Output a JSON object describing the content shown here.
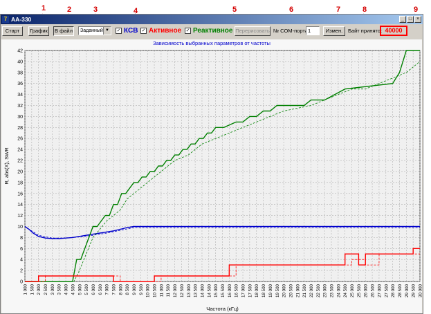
{
  "callouts": [
    "1",
    "2",
    "3",
    "4",
    "5",
    "6",
    "7",
    "8",
    "9"
  ],
  "window": {
    "title": "AA-330",
    "icon_glyph": "7",
    "controls": {
      "minimize": "_",
      "maximize": "□",
      "close": "×"
    }
  },
  "toolbar": {
    "start_label": "Старт",
    "graph_label": "График",
    "to_file_label": "В файл",
    "mode_select_value": "Заданный",
    "ksv_label": "КСВ",
    "active_label": "Активное",
    "reactive_label": "Реактивное",
    "redraw_label": "Перерисовать",
    "com_port_label": "№ COM-порта",
    "com_port_value": "1",
    "change_label": "Измен.",
    "bytes_label": "Байт принято:",
    "bytes_value": "40000",
    "checkboxes": {
      "ksv": true,
      "active": true,
      "reactive": true
    }
  },
  "colors": {
    "ksv": "#0000cc",
    "active": "#ff0000",
    "reactive": "#008000",
    "callout": "#d40000"
  },
  "chart_data": {
    "type": "line",
    "title": "Зависимость выбранных параметров от частоты",
    "xlabel": "Частота (кГц)",
    "ylabel": "R, abs(X), SWR",
    "xlim": [
      1000,
      30000
    ],
    "ylim": [
      0,
      42
    ],
    "yticks": [
      0,
      2,
      4,
      6,
      8,
      10,
      12,
      14,
      16,
      18,
      20,
      22,
      24,
      26,
      28,
      30,
      32,
      34,
      36,
      38,
      40,
      42
    ],
    "xticks": [
      "1 000",
      "1 500",
      "2 000",
      "2 500",
      "3 000",
      "3 500",
      "4 000",
      "4 500",
      "5 000",
      "5 500",
      "6 000",
      "6 500",
      "7 000",
      "7 500",
      "8 000",
      "8 500",
      "9 000",
      "9 500",
      "10 000",
      "10 500",
      "11 000",
      "11 500",
      "12 000",
      "12 500",
      "13 000",
      "13 500",
      "14 000",
      "14 500",
      "15 000",
      "15 500",
      "16 000",
      "16 500",
      "17 000",
      "17 500",
      "18 000",
      "18 500",
      "19 000",
      "19 500",
      "20 000",
      "20 500",
      "21 000",
      "21 500",
      "22 000",
      "22 500",
      "23 000",
      "23 500",
      "24 000",
      "24 500",
      "25 000",
      "25 500",
      "26 000",
      "26 500",
      "27 000",
      "27 500",
      "28 000",
      "28 500",
      "29 000",
      "29 500",
      "30 000"
    ],
    "grid": true,
    "series": [
      {
        "key": "ksv",
        "style": "solid",
        "x": [
          1000,
          1300,
          1600,
          2000,
          2500,
          3000,
          3500,
          4000,
          4500,
          5000,
          5500,
          6000,
          6500,
          7000,
          7500,
          8000,
          8500,
          9000,
          9500,
          30000
        ],
        "y": [
          10,
          9.5,
          8.8,
          8.2,
          7.9,
          7.8,
          7.8,
          7.9,
          8,
          8.2,
          8.4,
          8.6,
          8.8,
          9,
          9.2,
          9.5,
          9.8,
          10,
          10,
          10
        ]
      },
      {
        "key": "ksv",
        "style": "dashed",
        "x": [
          1000,
          2000,
          3000,
          4000,
          5000,
          6000,
          7000,
          8000,
          9000,
          30000
        ],
        "y": [
          10,
          8.4,
          7.9,
          7.9,
          8.1,
          8.4,
          8.8,
          9.3,
          9.8,
          9.8
        ]
      },
      {
        "key": "reactive",
        "style": "solid",
        "x": [
          1000,
          4500,
          4800,
          5100,
          5400,
          5700,
          6000,
          6300,
          6600,
          6900,
          7200,
          7500,
          7800,
          8100,
          8400,
          8700,
          9000,
          9300,
          9600,
          9900,
          10200,
          10500,
          10800,
          11100,
          11400,
          11700,
          12000,
          12300,
          12600,
          12900,
          13200,
          13500,
          13800,
          14100,
          14400,
          14700,
          15000,
          15300,
          15600,
          16500,
          17000,
          17500,
          18000,
          18500,
          19000,
          19500,
          21500,
          22000,
          23000,
          24500,
          28000,
          28500,
          29000,
          30000
        ],
        "y": [
          0,
          0,
          4,
          4,
          6,
          8,
          10,
          10,
          11,
          12,
          12,
          14,
          14,
          16,
          16,
          17,
          18,
          18,
          19,
          19,
          20,
          20,
          21,
          21,
          22,
          22,
          23,
          23,
          24,
          24,
          25,
          25,
          26,
          26,
          27,
          27,
          28,
          28,
          28,
          29,
          29,
          30,
          30,
          31,
          31,
          32,
          32,
          33,
          33,
          35,
          36,
          38,
          42,
          42
        ]
      },
      {
        "key": "reactive",
        "style": "dashed",
        "x": [
          1000,
          4600,
          5000,
          5500,
          6000,
          6500,
          7000,
          7500,
          8000,
          8500,
          9000,
          9500,
          10000,
          11000,
          12000,
          13000,
          14000,
          15000,
          16000,
          17000,
          18000,
          19000,
          20000,
          22000,
          23000,
          24000,
          25000,
          26000,
          27000,
          28000,
          29000,
          30000
        ],
        "y": [
          0,
          0,
          2,
          5,
          8,
          9.5,
          11,
          12,
          13,
          15,
          16,
          17,
          18,
          20,
          22,
          23,
          25,
          26,
          27,
          28,
          29,
          30,
          31,
          32,
          33,
          34,
          35,
          35,
          36,
          37,
          38,
          40
        ]
      },
      {
        "key": "active",
        "style": "solid",
        "x": [
          1000,
          2000,
          2001,
          7500,
          7501,
          10500,
          10501,
          16000,
          16001,
          24500,
          24501,
          25500,
          25501,
          26000,
          26001,
          26500,
          26501,
          29500,
          29501,
          30000
        ],
        "y": [
          0,
          0,
          1,
          1,
          0,
          0,
          1,
          1,
          3,
          3,
          5,
          5,
          3,
          3,
          5,
          5,
          5,
          5,
          6,
          6
        ]
      },
      {
        "key": "active",
        "style": "dashed",
        "x": [
          1000,
          2500,
          2501,
          8000,
          8001,
          11000,
          11001,
          16500,
          16501,
          25000,
          25001,
          26000,
          26001,
          27000,
          27001,
          30000
        ],
        "y": [
          0,
          0,
          1,
          1,
          0,
          0,
          1,
          1,
          3,
          3,
          4,
          4,
          3,
          3,
          5,
          5
        ]
      }
    ]
  }
}
